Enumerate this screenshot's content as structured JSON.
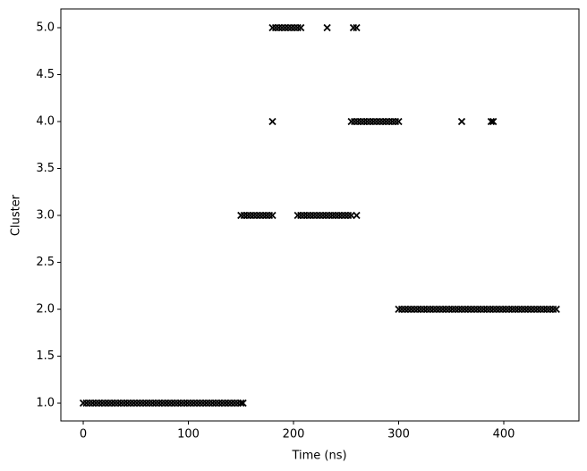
{
  "chart_data": {
    "type": "scatter",
    "xlabel": "Time (ns)",
    "ylabel": "Cluster",
    "color": "#000000",
    "marker": "x",
    "x": [
      0,
      3,
      6,
      9,
      12,
      15,
      18,
      21,
      24,
      27,
      30,
      33,
      36,
      39,
      42,
      45,
      48,
      51,
      54,
      57,
      60,
      63,
      66,
      69,
      72,
      75,
      78,
      81,
      84,
      87,
      90,
      93,
      96,
      99,
      102,
      105,
      108,
      111,
      114,
      117,
      120,
      123,
      126,
      129,
      132,
      135,
      138,
      141,
      144,
      147,
      150,
      152,
      150,
      153,
      156,
      159,
      162,
      165,
      168,
      171,
      174,
      177,
      180,
      180,
      180,
      183,
      186,
      189,
      192,
      195,
      198,
      201,
      204,
      207,
      204,
      207,
      210,
      213,
      216,
      219,
      222,
      225,
      228,
      231,
      234,
      237,
      240,
      243,
      246,
      249,
      252,
      255,
      260,
      232,
      257,
      260,
      255,
      258,
      261,
      264,
      267,
      270,
      273,
      276,
      279,
      282,
      285,
      288,
      291,
      294,
      297,
      300,
      360,
      388,
      390,
      300,
      303,
      306,
      309,
      312,
      315,
      318,
      321,
      324,
      327,
      330,
      333,
      336,
      339,
      342,
      345,
      348,
      351,
      354,
      357,
      360,
      363,
      366,
      369,
      372,
      375,
      378,
      381,
      384,
      387,
      390,
      393,
      396,
      399,
      402,
      405,
      408,
      411,
      414,
      417,
      420,
      423,
      426,
      429,
      432,
      435,
      438,
      441,
      444,
      447,
      450
    ],
    "values": [
      1,
      1,
      1,
      1,
      1,
      1,
      1,
      1,
      1,
      1,
      1,
      1,
      1,
      1,
      1,
      1,
      1,
      1,
      1,
      1,
      1,
      1,
      1,
      1,
      1,
      1,
      1,
      1,
      1,
      1,
      1,
      1,
      1,
      1,
      1,
      1,
      1,
      1,
      1,
      1,
      1,
      1,
      1,
      1,
      1,
      1,
      1,
      1,
      1,
      1,
      1,
      1,
      3,
      3,
      3,
      3,
      3,
      3,
      3,
      3,
      3,
      3,
      3,
      4,
      5,
      5,
      5,
      5,
      5,
      5,
      5,
      5,
      5,
      5,
      3,
      3,
      3,
      3,
      3,
      3,
      3,
      3,
      3,
      3,
      3,
      3,
      3,
      3,
      3,
      3,
      3,
      3,
      3,
      5,
      5,
      5,
      4,
      4,
      4,
      4,
      4,
      4,
      4,
      4,
      4,
      4,
      4,
      4,
      4,
      4,
      4,
      4,
      4,
      4,
      4,
      2,
      2,
      2,
      2,
      2,
      2,
      2,
      2,
      2,
      2,
      2,
      2,
      2,
      2,
      2,
      2,
      2,
      2,
      2,
      2,
      2,
      2,
      2,
      2,
      2,
      2,
      2,
      2,
      2,
      2,
      2,
      2,
      2,
      2,
      2,
      2,
      2,
      2,
      2,
      2,
      2,
      2,
      2,
      2,
      2,
      2,
      2,
      2,
      2,
      2,
      2
    ],
    "xlim": [
      -21.3,
      471.5
    ],
    "ylim": [
      0.81,
      5.2
    ],
    "xticks": [
      0,
      100,
      200,
      300,
      400
    ],
    "yticks": [
      {
        "value": 1,
        "label": "1.0"
      },
      {
        "value": 1.5,
        "label": "1.5"
      },
      {
        "value": 2,
        "label": "2.0"
      },
      {
        "value": 2.5,
        "label": "2.5"
      },
      {
        "value": 3,
        "label": "3.0"
      },
      {
        "value": 3.5,
        "label": "3.5"
      },
      {
        "value": 4,
        "label": "4.0"
      },
      {
        "value": 4.5,
        "label": "4.5"
      },
      {
        "value": 5,
        "label": "5.0"
      }
    ],
    "grid": false
  }
}
